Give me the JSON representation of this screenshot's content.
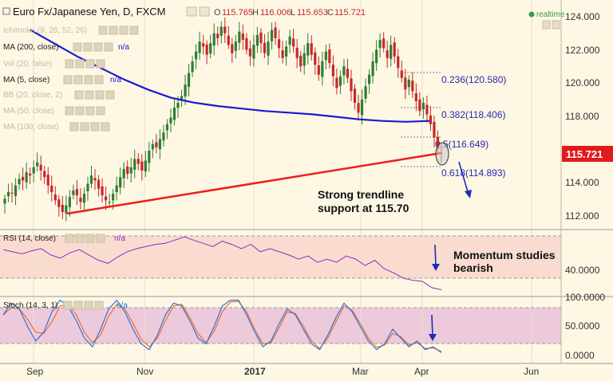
{
  "header": {
    "symbol_title": "Euro Fx/Japanese Yen, D, FXCM",
    "ohlc": [
      {
        "k": "O",
        "v": "115.765"
      },
      {
        "k": "H",
        "v": "116.006"
      },
      {
        "k": "L",
        "v": "115.653"
      },
      {
        "k": "C",
        "v": "115.721"
      }
    ],
    "realtime": "realtime"
  },
  "indicators": [
    {
      "label": "Ichimoku (9, 26, 52, 26)",
      "na": ""
    },
    {
      "label": "MA (200, close)",
      "na": "n/a"
    },
    {
      "label": "Vol (20, false)",
      "na": ""
    },
    {
      "label": "MA (5, close)",
      "na": "n/a"
    },
    {
      "label": "BB (20, close, 2)",
      "na": ""
    },
    {
      "label": "MA (50, close)",
      "na": ""
    },
    {
      "label": "MA (100, close)",
      "na": ""
    }
  ],
  "price_axis": {
    "ticks": [
      "124.000",
      "122.000",
      "120.000",
      "118.000",
      "116.000",
      "114.000",
      "112.000"
    ],
    "last_price": "115.721"
  },
  "fibonacci": [
    {
      "label": "0.236(120.580)",
      "value": 120.58
    },
    {
      "label": "0.382(118.406)",
      "value": 118.406
    },
    {
      "label": "0.5(116.649)",
      "value": 116.649
    },
    {
      "label": "0.618(114.893)",
      "value": 114.893
    }
  ],
  "annotations": {
    "trendline_line1": "Strong trendline",
    "trendline_line2": "support at 115.70",
    "momentum_line1": "Momentum studies",
    "momentum_line2": "bearish"
  },
  "rsi_panel": {
    "label": "RSI (14, close)",
    "na": "n/a",
    "tick": "40.0000"
  },
  "stoch_panel": {
    "label": "Stoch (14, 3, 1)",
    "na": "n/a",
    "ticks": [
      "100.0000",
      "50.0000",
      "0.0000"
    ]
  },
  "time_axis": [
    "Sep",
    "Nov",
    "2017",
    "Mar",
    "Apr",
    "Jun"
  ],
  "colors": {
    "up_candle": "#2e7d32",
    "down_candle": "#c62828",
    "ma200": "#1a1acf",
    "trendline": "#ee1c1c",
    "rsi_line": "#8e2bc0",
    "stoch_k": "#1d6fd6",
    "stoch_d": "#e8671e",
    "price_label_bg": "#e11b1b"
  },
  "chart_data": {
    "type": "candlestick",
    "price_range": [
      111.5,
      124.5
    ],
    "trendline": {
      "from": [
        0,
        112.1
      ],
      "to": [
        42,
        115.72
      ]
    },
    "closes": [
      113.0,
      113.4,
      113.3,
      113.8,
      114.2,
      114.1,
      114.6,
      114.4,
      114.9,
      115.2,
      114.7,
      114.3,
      113.8,
      113.4,
      112.9,
      112.5,
      112.2,
      112.6,
      113.1,
      113.5,
      113.2,
      112.8,
      113.3,
      113.9,
      114.4,
      114.1,
      113.6,
      113.2,
      112.9,
      112.8,
      113.3,
      113.8,
      114.3,
      114.8,
      114.5,
      114.9,
      115.4,
      115.1,
      114.7,
      115.3,
      115.9,
      116.3,
      116.1,
      116.6,
      117.0,
      117.5,
      117.9,
      118.5,
      118.8,
      119.2,
      119.9,
      120.6,
      121.3,
      121.9,
      122.5,
      122.2,
      121.7,
      122.4,
      123.0,
      122.7,
      123.4,
      123.0,
      122.3,
      121.8,
      122.5,
      123.1,
      122.6,
      122.0,
      121.6,
      122.3,
      122.9,
      122.4,
      121.8,
      122.5,
      123.2,
      122.7,
      122.1,
      121.5,
      122.2,
      122.8,
      122.2,
      121.5,
      121.0,
      121.8,
      122.4,
      121.7,
      121.1,
      120.5,
      121.3,
      121.9,
      121.2,
      120.4,
      119.7,
      120.4,
      121.0,
      120.3,
      119.5,
      118.8,
      118.2,
      119.0,
      119.8,
      120.5,
      121.3,
      122.0,
      122.6,
      122.1,
      121.5,
      122.3,
      121.6,
      120.9,
      120.3,
      119.6,
      120.2,
      119.5,
      118.9,
      118.3,
      118.8,
      118.1,
      117.5,
      116.7,
      116.0,
      115.72
    ],
    "ma200": [
      123.2,
      122.4,
      121.6,
      120.9,
      120.2,
      119.6,
      119.1,
      118.8,
      118.6,
      118.45,
      118.3,
      118.2,
      118.1,
      117.95,
      117.8,
      117.7,
      117.65,
      117.7
    ],
    "rsi": [
      57,
      55,
      53,
      56,
      58,
      52,
      49,
      54,
      57,
      52,
      47,
      44,
      50,
      55,
      58,
      60,
      62,
      63,
      66,
      69,
      66,
      63,
      60,
      65,
      62,
      58,
      62,
      55,
      58,
      55,
      52,
      48,
      51,
      45,
      48,
      45,
      51,
      48,
      42,
      47,
      39,
      35,
      30,
      28,
      27,
      21,
      19
    ],
    "stoch_k": [
      70,
      90,
      80,
      50,
      25,
      40,
      75,
      95,
      85,
      60,
      30,
      15,
      45,
      80,
      95,
      75,
      45,
      20,
      10,
      35,
      70,
      90,
      85,
      60,
      30,
      20,
      50,
      85,
      95,
      95,
      70,
      40,
      15,
      25,
      55,
      80,
      70,
      45,
      20,
      10,
      35,
      65,
      90,
      75,
      50,
      25,
      10,
      20,
      45,
      30,
      15,
      25,
      10,
      15,
      5
    ],
    "stoch_d": [
      70,
      82,
      80,
      62,
      40,
      38,
      58,
      85,
      88,
      70,
      40,
      22,
      35,
      68,
      88,
      80,
      55,
      28,
      15,
      30,
      60,
      85,
      88,
      65,
      38,
      22,
      42,
      75,
      92,
      93,
      75,
      45,
      20,
      22,
      48,
      75,
      72,
      50,
      25,
      12,
      30,
      58,
      85,
      78,
      55,
      30,
      14,
      18,
      38,
      32,
      18,
      22,
      12,
      13,
      7
    ]
  }
}
